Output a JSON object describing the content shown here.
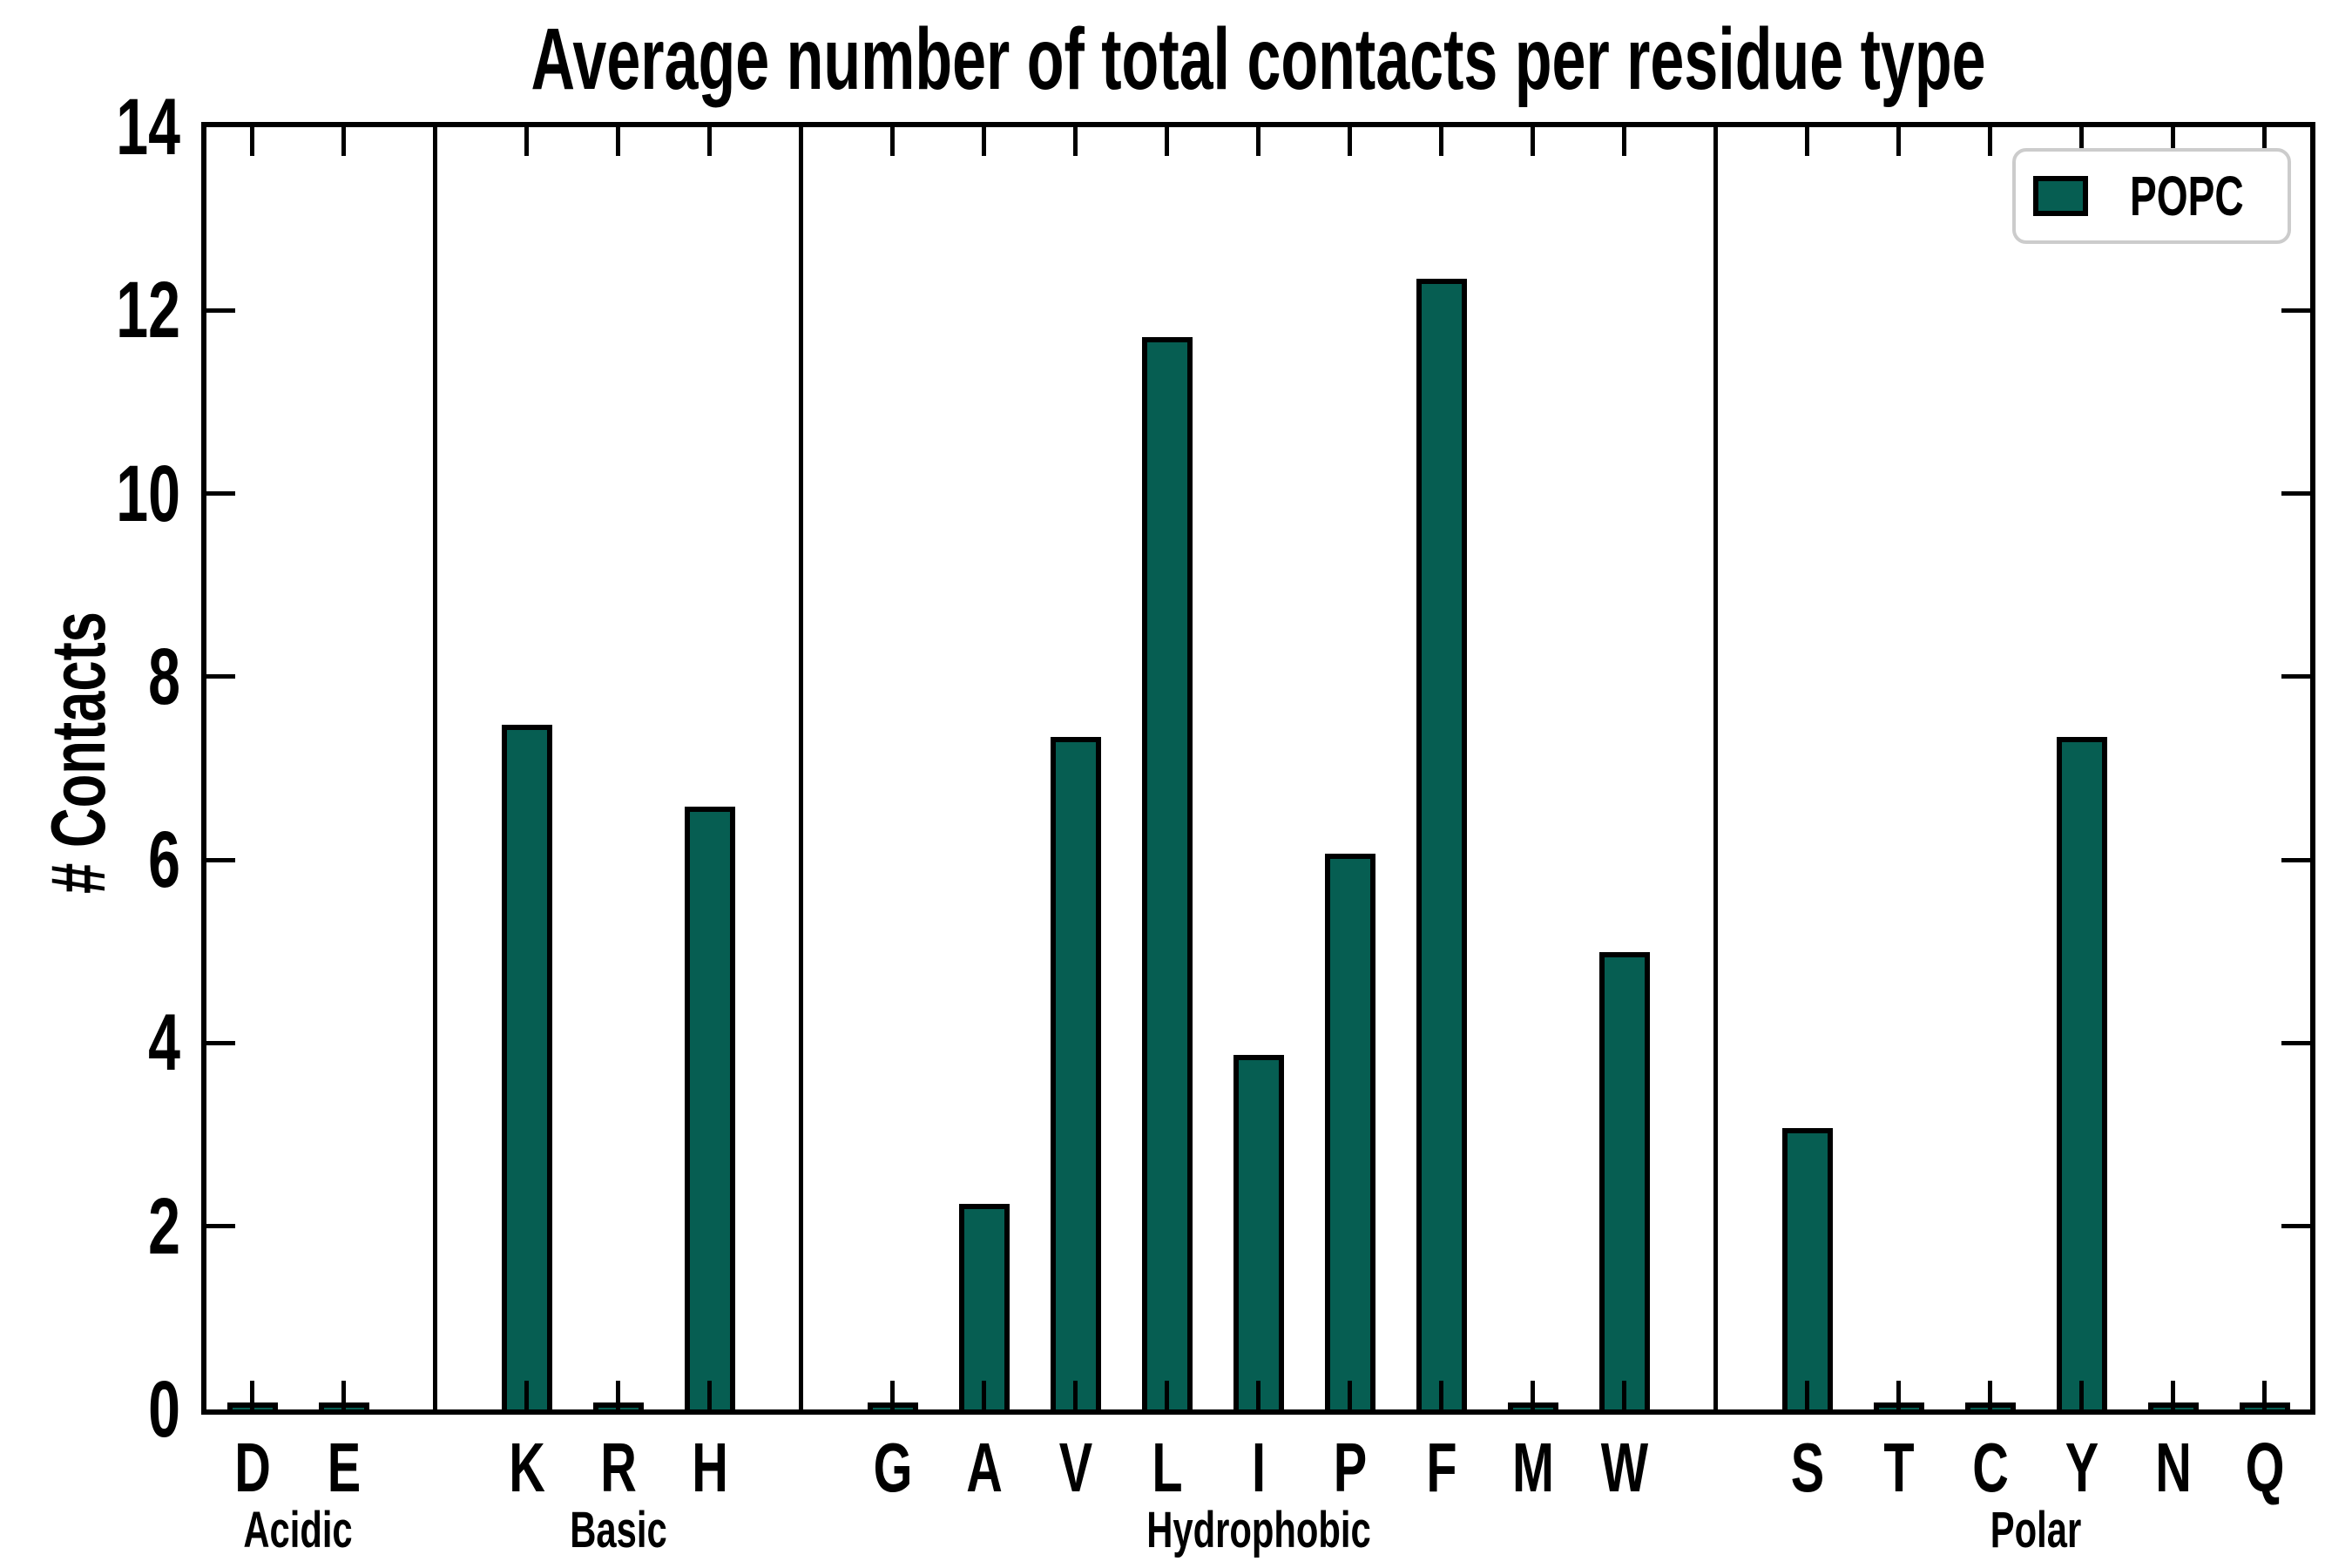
{
  "title": "Average number of total contacts per residue type",
  "ylabel": "# Contacts",
  "legend": {
    "label": "POPC"
  },
  "style": {
    "bar_fill": "#065E52",
    "bar_edge": "#000000",
    "axis_color": "#000000",
    "legend_border": "#cccccc",
    "background": "#ffffff"
  },
  "chart_data": {
    "type": "bar",
    "title": "Average number of total contacts per residue type",
    "xlabel": "",
    "ylabel": "# Contacts",
    "ylim": [
      0,
      14
    ],
    "yticks": [
      0,
      2,
      4,
      6,
      8,
      10,
      12,
      14
    ],
    "grid": false,
    "legend_position": "upper right",
    "series_name": "POPC",
    "categories": [
      "D",
      "E",
      "K",
      "R",
      "H",
      "G",
      "A",
      "V",
      "L",
      "I",
      "P",
      "F",
      "M",
      "W",
      "S",
      "T",
      "C",
      "Y",
      "N",
      "Q"
    ],
    "values": [
      0.03,
      0.03,
      7.48,
      0.03,
      6.58,
      0.03,
      2.24,
      7.34,
      11.71,
      3.87,
      6.07,
      12.35,
      0.03,
      4.99,
      3.07,
      0.03,
      0.03,
      7.34,
      0.03,
      0.03
    ],
    "groups": [
      {
        "label": "Acidic",
        "categories": [
          "D",
          "E"
        ]
      },
      {
        "label": "Basic",
        "categories": [
          "K",
          "R",
          "H"
        ]
      },
      {
        "label": "Hydrophobic",
        "categories": [
          "G",
          "A",
          "V",
          "L",
          "I",
          "P",
          "F",
          "M",
          "W"
        ]
      },
      {
        "label": "Polar",
        "categories": [
          "S",
          "T",
          "C",
          "Y",
          "N",
          "Q"
        ]
      }
    ]
  }
}
